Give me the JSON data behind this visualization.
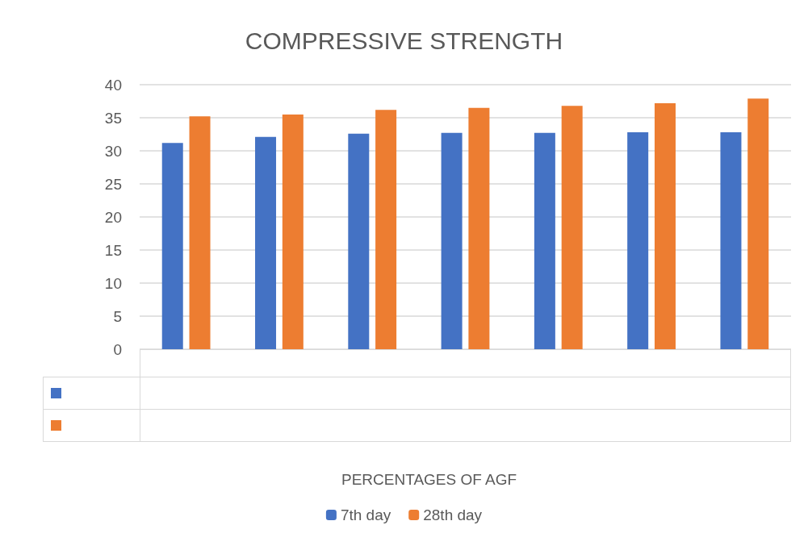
{
  "chart_data": {
    "type": "bar",
    "title": "COMPRESSIVE STRENGTH",
    "annotations": [
      "PERCENTAGES OF AGF"
    ],
    "categories": [
      null,
      null,
      null,
      null,
      null,
      null,
      null
    ],
    "series": [
      {
        "name": "7th day",
        "color": "#4472c4",
        "values": [
          31.2,
          32.1,
          32.6,
          32.7,
          32.7,
          32.8,
          32.8
        ]
      },
      {
        "name": "28th day",
        "color": "#ed7d31",
        "values": [
          35.2,
          35.5,
          36.2,
          36.5,
          36.8,
          37.2,
          37.9
        ]
      }
    ],
    "ylim": [
      0,
      40
    ],
    "yticks": [
      0,
      5,
      10,
      15,
      20,
      25,
      30,
      35,
      40
    ],
    "grid": "y",
    "legend": "bottom"
  }
}
